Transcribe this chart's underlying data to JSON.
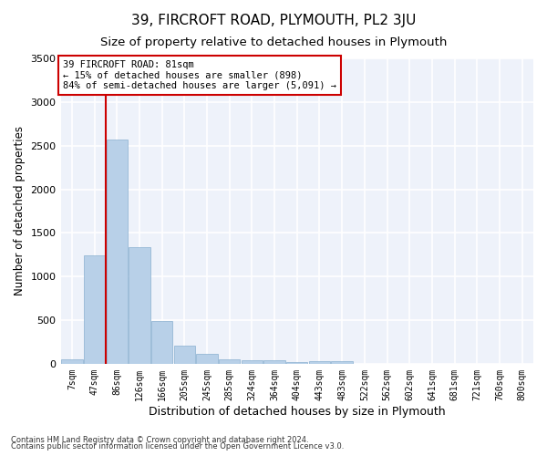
{
  "title": "39, FIRCROFT ROAD, PLYMOUTH, PL2 3JU",
  "subtitle": "Size of property relative to detached houses in Plymouth",
  "xlabel": "Distribution of detached houses by size in Plymouth",
  "ylabel": "Number of detached properties",
  "categories": [
    "7sqm",
    "47sqm",
    "86sqm",
    "126sqm",
    "166sqm",
    "205sqm",
    "245sqm",
    "285sqm",
    "324sqm",
    "364sqm",
    "404sqm",
    "443sqm",
    "483sqm",
    "522sqm",
    "562sqm",
    "602sqm",
    "641sqm",
    "681sqm",
    "721sqm",
    "760sqm",
    "800sqm"
  ],
  "values": [
    50,
    1240,
    2570,
    1340,
    490,
    205,
    110,
    55,
    45,
    35,
    20,
    30,
    25,
    0,
    0,
    0,
    0,
    0,
    0,
    0,
    0
  ],
  "bar_color": "#b8d0e8",
  "bar_edge_color": "#8ab0d0",
  "marker_label": "39 FIRCROFT ROAD: 81sqm",
  "annotation_line1": "← 15% of detached houses are smaller (898)",
  "annotation_line2": "84% of semi-detached houses are larger (5,091) →",
  "annotation_box_color": "#cc0000",
  "vline_color": "#cc0000",
  "vline_x_index": 2,
  "ylim": [
    0,
    3500
  ],
  "background_color": "#eef2fa",
  "grid_color": "#ffffff",
  "footnote1": "Contains HM Land Registry data © Crown copyright and database right 2024.",
  "footnote2": "Contains public sector information licensed under the Open Government Licence v3.0.",
  "title_fontsize": 11,
  "subtitle_fontsize": 9.5,
  "xlabel_fontsize": 9,
  "ylabel_fontsize": 8.5
}
